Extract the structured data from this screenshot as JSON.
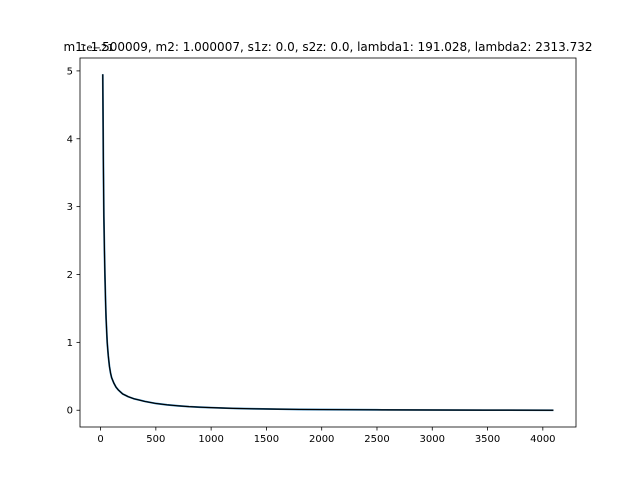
{
  "chart_data": {
    "type": "line",
    "title": "m1: 1.500009, m2: 1.000007, s1z: 0.0, s2z: 0.0, lambda1: 191.028, lambda2: 2313.732",
    "xlabel": "",
    "ylabel": "",
    "y_scale_label": "1e−21",
    "xlim": [
      -186,
      4300
    ],
    "ylim": [
      -0.247,
      5.19
    ],
    "xticks": [
      0,
      500,
      1000,
      1500,
      2000,
      2500,
      3000,
      3500,
      4000
    ],
    "xtick_labels": [
      "0",
      "500",
      "1000",
      "1500",
      "2000",
      "2500",
      "3000",
      "3500",
      "4000"
    ],
    "yticks": [
      0,
      1,
      2,
      3,
      4,
      5
    ],
    "ytick_labels": [
      "0",
      "1",
      "2",
      "3",
      "4",
      "5"
    ],
    "grid": false,
    "legend": "none",
    "series": [
      {
        "color": "#1f77b4",
        "x": [
          20,
          25,
          30,
          35,
          40,
          45,
          50,
          60,
          70,
          80,
          90,
          100,
          120,
          140,
          160,
          180,
          200,
          250,
          300,
          350,
          400,
          500,
          600,
          700,
          800,
          900,
          1000,
          1200,
          1400,
          1600,
          1800,
          2000,
          2500,
          3000,
          3500,
          4096
        ],
        "y": [
          4.95,
          3.7,
          2.85,
          2.35,
          1.95,
          1.62,
          1.35,
          1.0,
          0.8,
          0.65,
          0.55,
          0.48,
          0.4,
          0.34,
          0.3,
          0.27,
          0.24,
          0.2,
          0.17,
          0.15,
          0.13,
          0.1,
          0.08,
          0.065,
          0.053,
          0.045,
          0.038,
          0.028,
          0.021,
          0.016,
          0.012,
          0.01,
          0.006,
          0.004,
          0.002,
          0.0
        ]
      },
      {
        "color": "#000000",
        "x": [
          20,
          25,
          30,
          35,
          40,
          45,
          50,
          60,
          70,
          80,
          90,
          100,
          120,
          140,
          160,
          180,
          200,
          250,
          300,
          350,
          400,
          500,
          600,
          700,
          800,
          900,
          1000,
          1200,
          1400,
          1600,
          1800,
          2000,
          2500,
          3000,
          3500,
          4096
        ],
        "y": [
          4.95,
          3.7,
          2.85,
          2.35,
          1.95,
          1.62,
          1.35,
          1.0,
          0.8,
          0.65,
          0.55,
          0.48,
          0.4,
          0.34,
          0.3,
          0.27,
          0.24,
          0.2,
          0.17,
          0.15,
          0.13,
          0.1,
          0.08,
          0.065,
          0.053,
          0.045,
          0.038,
          0.028,
          0.021,
          0.016,
          0.012,
          0.01,
          0.006,
          0.004,
          0.002,
          0.0
        ]
      }
    ]
  }
}
